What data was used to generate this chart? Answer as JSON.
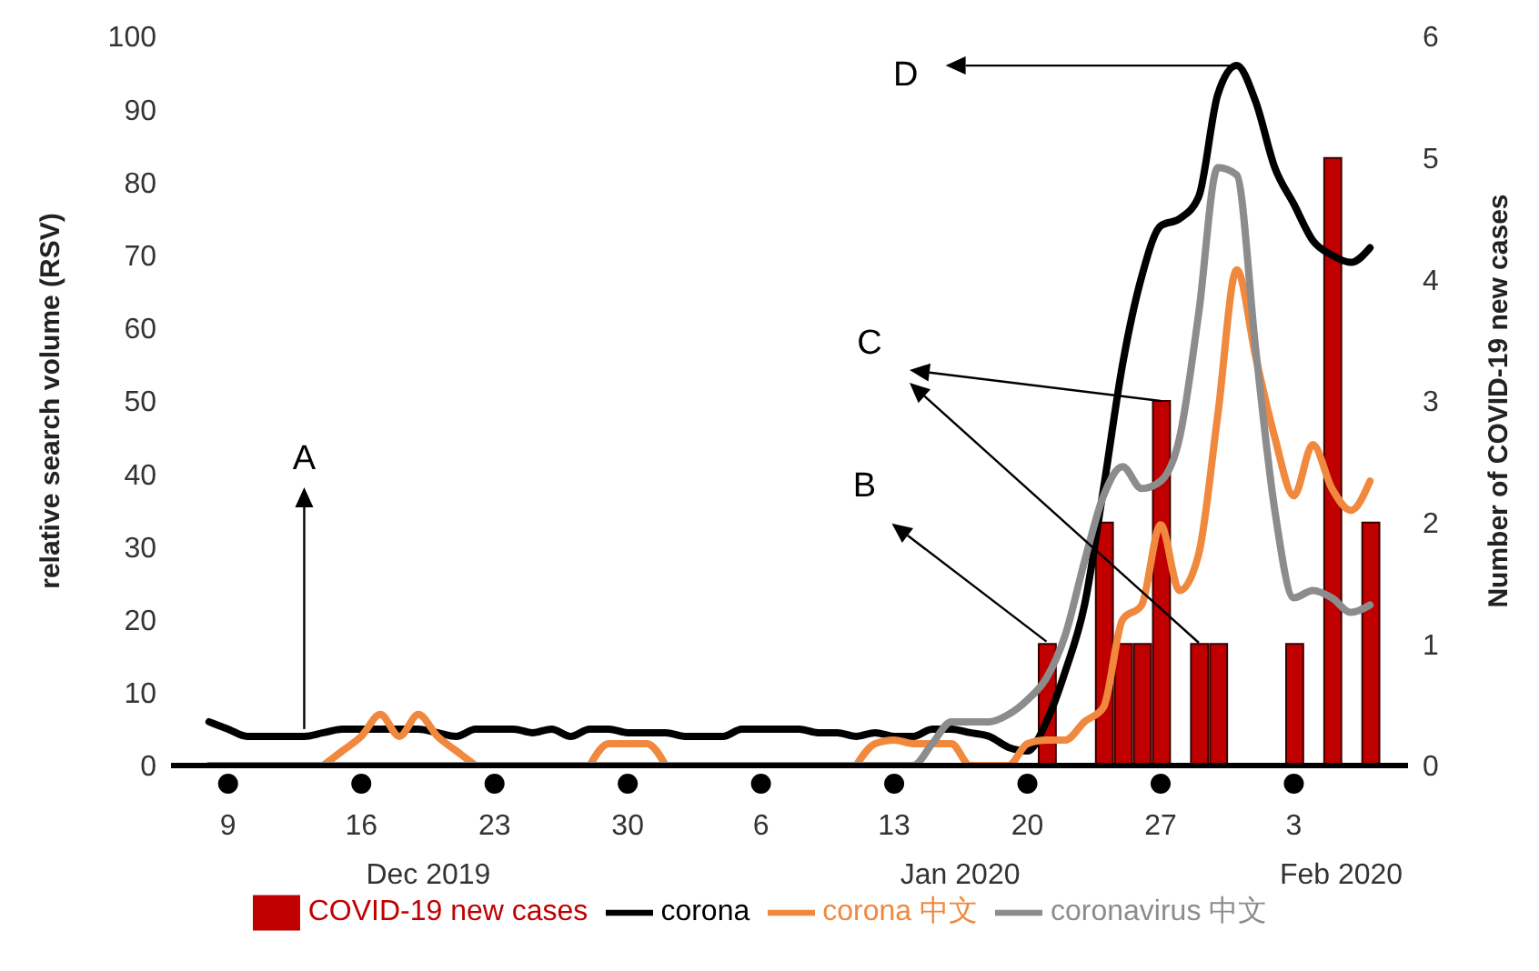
{
  "chart_data": {
    "type": "line",
    "ylabel": "relative search volume (RSV)",
    "y2label": "Number of COVID-19 new cases",
    "legend": "bottom",
    "x": [
      "2019-12-08",
      "2019-12-09",
      "2019-12-10",
      "2019-12-11",
      "2019-12-12",
      "2019-12-13",
      "2019-12-14",
      "2019-12-15",
      "2019-12-16",
      "2019-12-17",
      "2019-12-18",
      "2019-12-19",
      "2019-12-20",
      "2019-12-21",
      "2019-12-22",
      "2019-12-23",
      "2019-12-24",
      "2019-12-25",
      "2019-12-26",
      "2019-12-27",
      "2019-12-28",
      "2019-12-29",
      "2019-12-30",
      "2019-12-31",
      "2020-01-01",
      "2020-01-02",
      "2020-01-03",
      "2020-01-04",
      "2020-01-05",
      "2020-01-06",
      "2020-01-07",
      "2020-01-08",
      "2020-01-09",
      "2020-01-10",
      "2020-01-11",
      "2020-01-12",
      "2020-01-13",
      "2020-01-14",
      "2020-01-15",
      "2020-01-16",
      "2020-01-17",
      "2020-01-18",
      "2020-01-19",
      "2020-01-20",
      "2020-01-21",
      "2020-01-22",
      "2020-01-23",
      "2020-01-24",
      "2020-01-25",
      "2020-01-26",
      "2020-01-27",
      "2020-01-28",
      "2020-01-29",
      "2020-01-30",
      "2020-01-31",
      "2020-02-01",
      "2020-02-02",
      "2020-02-03",
      "2020-02-04",
      "2020-02-05",
      "2020-02-06",
      "2020-02-07"
    ],
    "series": [
      {
        "name": "COVID-19 new cases",
        "type": "bar",
        "axis": "y2",
        "color": "#c00000",
        "x": [
          "2020-01-21",
          "2020-01-24",
          "2020-01-25",
          "2020-01-26",
          "2020-01-27",
          "2020-01-29",
          "2020-01-30",
          "2020-02-03",
          "2020-02-05",
          "2020-02-07"
        ],
        "values": [
          1,
          2,
          1,
          1,
          3,
          1,
          1,
          1,
          5,
          2
        ]
      },
      {
        "name": "corona",
        "color": "#000000",
        "values": [
          6,
          5,
          4,
          4,
          4,
          4,
          4.5,
          5,
          5,
          5,
          5,
          5,
          4.5,
          4,
          5,
          5,
          5,
          4.5,
          5,
          4,
          5,
          5,
          4.5,
          4.5,
          4.5,
          4,
          4,
          4,
          5,
          5,
          5,
          5,
          4.5,
          4.5,
          4,
          4.5,
          4,
          4,
          5,
          5,
          4.5,
          4,
          2.5,
          2,
          6,
          13,
          22,
          38,
          55,
          67,
          74,
          75,
          78,
          92,
          96,
          91,
          82,
          77,
          72,
          70,
          69,
          71
        ]
      },
      {
        "name": "corona 中文",
        "color": "#f0883e",
        "values": [
          null,
          null,
          null,
          null,
          null,
          null,
          0,
          2,
          4,
          7,
          4,
          7,
          4,
          2,
          0,
          null,
          null,
          null,
          null,
          null,
          0,
          3,
          3,
          3,
          0,
          null,
          null,
          null,
          null,
          null,
          null,
          null,
          null,
          null,
          0,
          3,
          3.5,
          3,
          3,
          3,
          0,
          0,
          0,
          3,
          3.5,
          3.5,
          6,
          8,
          20,
          22,
          33,
          24,
          29,
          48,
          68,
          56,
          45,
          37,
          44,
          38,
          35,
          39
        ]
      },
      {
        "name": "coronavirus 中文",
        "color": "#8c8c8c",
        "values": [
          0,
          0,
          0,
          0,
          0,
          0,
          0,
          0,
          0,
          0,
          0,
          0,
          0,
          0,
          0,
          0,
          0,
          0,
          0,
          0,
          0,
          0,
          0,
          0,
          0,
          0,
          0,
          0,
          0,
          0,
          0,
          0,
          0,
          0,
          0,
          0,
          0,
          0,
          3,
          6,
          6,
          6,
          7,
          9,
          12,
          18,
          28,
          37,
          41,
          38,
          39,
          45,
          62,
          82,
          81,
          57,
          35,
          23,
          24,
          23,
          21,
          22
        ]
      }
    ],
    "xlim": [
      "2019-12-06",
      "2020-02-09"
    ],
    "xticks": [
      {
        "value": "2019-12-09",
        "label": "9"
      },
      {
        "value": "2019-12-16",
        "label": "16"
      },
      {
        "value": "2019-12-23",
        "label": "23"
      },
      {
        "value": "2019-12-30",
        "label": "30"
      },
      {
        "value": "2020-01-06",
        "label": "6"
      },
      {
        "value": "2020-01-13",
        "label": "13"
      },
      {
        "value": "2020-01-20",
        "label": "20"
      },
      {
        "value": "2020-01-27",
        "label": "27"
      },
      {
        "value": "2020-02-03",
        "label": "3"
      }
    ],
    "ylim": [
      0,
      100
    ],
    "yticks": [
      0,
      10,
      20,
      30,
      40,
      50,
      60,
      70,
      80,
      90,
      100
    ],
    "y2lim": [
      0,
      6
    ],
    "y2ticks": [
      0,
      1,
      2,
      3,
      4,
      5,
      6
    ],
    "annotations": [
      {
        "text": "A",
        "x": "2019-12-13",
        "y": 5
      },
      {
        "text": "B",
        "x": "2020-01-21",
        "y": 17
      },
      "C",
      "D",
      "Dec 2019",
      "Jan 2020",
      "Feb 2020"
    ]
  }
}
